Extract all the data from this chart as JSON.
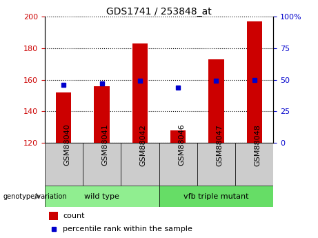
{
  "title": "GDS1741 / 253848_at",
  "samples": [
    "GSM88040",
    "GSM88041",
    "GSM88042",
    "GSM88046",
    "GSM88047",
    "GSM88048"
  ],
  "groups": [
    {
      "name": "wild type",
      "color": "#90EE90",
      "start": 0,
      "end": 3
    },
    {
      "name": "vfb triple mutant",
      "color": "#66DD66",
      "start": 3,
      "end": 6
    }
  ],
  "counts": [
    152,
    156,
    183,
    128,
    173,
    197
  ],
  "percentile_ranks": [
    46,
    47,
    49,
    44,
    49,
    50
  ],
  "ylim_left": [
    120,
    200
  ],
  "ylim_right": [
    0,
    100
  ],
  "yticks_left": [
    120,
    140,
    160,
    180,
    200
  ],
  "yticks_right": [
    0,
    25,
    50,
    75,
    100
  ],
  "bar_color": "#CC0000",
  "dot_color": "#0000CC",
  "ylabel_left_color": "#CC0000",
  "ylabel_right_color": "#0000CC",
  "legend_count_label": "count",
  "legend_percentile_label": "percentile rank within the sample",
  "group_label": "genotype/variation",
  "bar_width": 0.4,
  "group_box_color1": "#AADDAA",
  "group_box_color2": "#66DD66",
  "xtick_box_color": "#CCCCCC",
  "title_fontsize": 10,
  "tick_fontsize": 8,
  "label_fontsize": 8
}
